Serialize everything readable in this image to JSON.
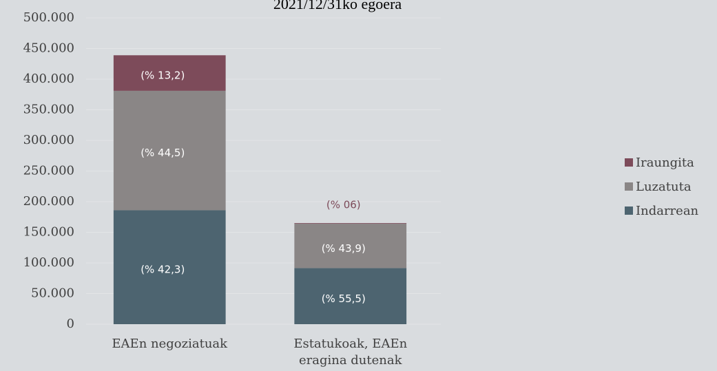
{
  "chart_data": {
    "type": "stacked_bar",
    "title": "2021/12/31ko egoera",
    "categories": [
      "EAEn negoziatuak",
      "Estatukoak, EAEn eragina dutenak"
    ],
    "series": [
      {
        "name": "Indarrean",
        "color": "#4d6470",
        "values": [
          186000,
          91500
        ],
        "segment_labels": [
          "(% 42,3)",
          "(% 55,5)"
        ]
      },
      {
        "name": "Luzatuta",
        "color": "#8a8686",
        "values": [
          195000,
          72500
        ],
        "segment_labels": [
          "(% 44,5)",
          "(% 43,9)"
        ]
      },
      {
        "name": "Iraungita",
        "color": "#7d4b5a",
        "values": [
          58000,
          1000
        ],
        "segment_labels": [
          "(% 13,2)",
          "(% 06)"
        ]
      }
    ],
    "ylim": [
      0,
      500000
    ],
    "yticks": [
      0,
      {
        "value": 50000,
        "label": "50.000"
      },
      {
        "value": 100000,
        "label": "100.000"
      },
      {
        "value": 150000,
        "label": "150.000"
      },
      {
        "value": 200000,
        "label": "200.000"
      },
      {
        "value": 250000,
        "label": "250.000"
      },
      {
        "value": 300000,
        "label": "300.000"
      },
      {
        "value": 350000,
        "label": "350.000"
      },
      {
        "value": 400000,
        "label": "400.000"
      },
      {
        "value": 450000,
        "label": "450.000"
      },
      {
        "value": 500000,
        "label": "500.000"
      }
    ],
    "grid": true,
    "legend": "right"
  }
}
